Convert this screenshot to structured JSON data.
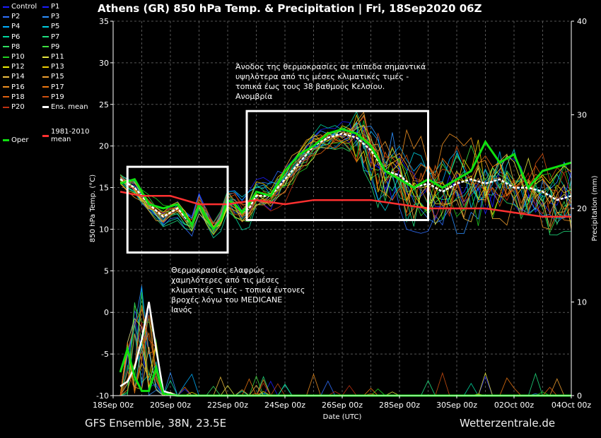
{
  "title": "Athens  (GR)  850 hPa Temp. & Precipitation | Fri, 18Sep2020 06Z",
  "footer": {
    "left": "GFS Ensemble, 38N, 23.5E",
    "right": "Wetterzentrale.de"
  },
  "annotations": {
    "upper": "Άνοδος της θερμοκρασίες σε επίπεδα σημαντικά\nυψηλότερα από τις μέσες κλιματικές τιμές -\nτοπικά έως τους 38 βαθμούς Κελσίου.\nΑνομβρία",
    "lower": "Θερμοκρασίες ελαφρώς\nχαμηλότερες από τις μέσες\nκλιματικές τιμές - τοπικά έντονες\nβροχές λόγω του MEDICANE\nΙανός"
  },
  "legend": [
    {
      "label": "Control",
      "color": "#1c1cff"
    },
    {
      "label": "P1",
      "color": "#1c1cff"
    },
    {
      "label": "P2",
      "color": "#3070ff"
    },
    {
      "label": "P3",
      "color": "#2e90ff"
    },
    {
      "label": "P4",
      "color": "#00b0ff"
    },
    {
      "label": "P5",
      "color": "#00d0e0"
    },
    {
      "label": "P6",
      "color": "#00d8a0"
    },
    {
      "label": "P7",
      "color": "#20e080"
    },
    {
      "label": "P8",
      "color": "#30e060"
    },
    {
      "label": "P9",
      "color": "#40e040"
    },
    {
      "label": "P10",
      "color": "#20d020"
    },
    {
      "label": "P11",
      "color": "#e8e840"
    },
    {
      "label": "P12",
      "color": "#f0f000"
    },
    {
      "label": "P13",
      "color": "#f0d000"
    },
    {
      "label": "P14",
      "color": "#f0c040"
    },
    {
      "label": "P15",
      "color": "#f0a030"
    },
    {
      "label": "P16",
      "color": "#f09020"
    },
    {
      "label": "P17",
      "color": "#f07810"
    },
    {
      "label": "P18",
      "color": "#e06010"
    },
    {
      "label": "P19",
      "color": "#d05010"
    },
    {
      "label": "P20",
      "color": "#c03010"
    },
    {
      "label": "Ens. mean",
      "color": "#ffffff"
    },
    {
      "label": "Oper",
      "color": "#10e010"
    },
    {
      "label": "1981-2010\nmean",
      "color": "#ff3030"
    }
  ],
  "chart_data": {
    "type": "line",
    "title": "Athens  (GR)  850 hPa Temp. & Precipitation | Fri, 18Sep2020 06Z",
    "xlabel": "Date (UTC)",
    "ylabel": "850 hPa Temp. (°C)",
    "y2label": "Precipitation (mm)",
    "xlim": [
      0,
      384
    ],
    "ylim": [
      -10,
      35
    ],
    "y2lim": [
      0,
      40
    ],
    "x_ticks": [
      {
        "h": 0,
        "label": "18Sep 00z"
      },
      {
        "h": 48,
        "label": "20Sep 00z"
      },
      {
        "h": 96,
        "label": "22Sep 00z"
      },
      {
        "h": 144,
        "label": "24Sep 00z"
      },
      {
        "h": 192,
        "label": "26Sep 00z"
      },
      {
        "h": 240,
        "label": "28Sep 00z"
      },
      {
        "h": 288,
        "label": "30Sep 00z"
      },
      {
        "h": 336,
        "label": "02Oct 00z"
      },
      {
        "h": 384,
        "label": "04Oct 00z"
      }
    ],
    "y_ticks": [
      -10,
      -5,
      0,
      5,
      10,
      15,
      20,
      25,
      30,
      35
    ],
    "y2_ticks": [
      0,
      10,
      20,
      30,
      40
    ],
    "grid": true,
    "series": [
      {
        "name": "Ens. mean",
        "color": "#ffffff",
        "width": 2.5,
        "dash": "4,2",
        "points": [
          [
            6,
            16
          ],
          [
            18,
            15
          ],
          [
            30,
            13
          ],
          [
            42,
            11.5
          ],
          [
            54,
            12.5
          ],
          [
            66,
            10.5
          ],
          [
            72,
            13
          ],
          [
            84,
            10
          ],
          [
            90,
            11
          ],
          [
            96,
            13.5
          ],
          [
            102,
            13
          ],
          [
            108,
            12
          ],
          [
            114,
            12.5
          ],
          [
            120,
            14
          ],
          [
            132,
            14
          ],
          [
            144,
            16
          ],
          [
            156,
            18
          ],
          [
            168,
            20
          ],
          [
            180,
            21
          ],
          [
            192,
            21.5
          ],
          [
            204,
            21
          ],
          [
            216,
            19.5
          ],
          [
            228,
            17
          ],
          [
            240,
            16.5
          ],
          [
            252,
            15
          ],
          [
            264,
            15.5
          ],
          [
            276,
            14.5
          ],
          [
            288,
            15.5
          ],
          [
            300,
            16
          ],
          [
            312,
            15.5
          ],
          [
            324,
            16
          ],
          [
            336,
            15
          ],
          [
            348,
            15
          ],
          [
            360,
            14.5
          ],
          [
            372,
            13.5
          ],
          [
            384,
            14
          ]
        ]
      },
      {
        "name": "Oper",
        "color": "#10e010",
        "width": 3,
        "points": [
          [
            6,
            15.5
          ],
          [
            18,
            16
          ],
          [
            30,
            13
          ],
          [
            42,
            12.5
          ],
          [
            54,
            13
          ],
          [
            66,
            10.5
          ],
          [
            72,
            13
          ],
          [
            84,
            10
          ],
          [
            90,
            11
          ],
          [
            96,
            13.5
          ],
          [
            102,
            13
          ],
          [
            108,
            12
          ],
          [
            114,
            13
          ],
          [
            120,
            14.5
          ],
          [
            132,
            14
          ],
          [
            144,
            17
          ],
          [
            156,
            19
          ],
          [
            168,
            20
          ],
          [
            180,
            21.5
          ],
          [
            192,
            22
          ],
          [
            204,
            21.5
          ],
          [
            216,
            20
          ],
          [
            228,
            17
          ],
          [
            240,
            16
          ],
          [
            252,
            15
          ],
          [
            264,
            16
          ],
          [
            276,
            15
          ],
          [
            288,
            16
          ],
          [
            300,
            17
          ],
          [
            312,
            20.5
          ],
          [
            324,
            18
          ],
          [
            336,
            19
          ],
          [
            348,
            15
          ],
          [
            360,
            17
          ],
          [
            372,
            17.5
          ],
          [
            384,
            18
          ]
        ]
      },
      {
        "name": "1981-2010\nmean",
        "color": "#ff3030",
        "width": 2.5,
        "points": [
          [
            6,
            14.5
          ],
          [
            24,
            14
          ],
          [
            48,
            14
          ],
          [
            72,
            13
          ],
          [
            96,
            13
          ],
          [
            120,
            13.5
          ],
          [
            144,
            13
          ],
          [
            168,
            13.5
          ],
          [
            192,
            13.5
          ],
          [
            216,
            13.5
          ],
          [
            240,
            13
          ],
          [
            264,
            12.5
          ],
          [
            288,
            12.5
          ],
          [
            312,
            12.5
          ],
          [
            336,
            12
          ],
          [
            360,
            11.5
          ],
          [
            384,
            11.5
          ]
        ]
      }
    ],
    "precipitation_series": [
      {
        "name": "Ens. mean",
        "color": "#ffffff",
        "width": 2.5,
        "points": [
          [
            6,
            1
          ],
          [
            12,
            1.5
          ],
          [
            18,
            3
          ],
          [
            24,
            6
          ],
          [
            30,
            10
          ],
          [
            36,
            5
          ],
          [
            42,
            0.5
          ],
          [
            54,
            0
          ],
          [
            120,
            0
          ],
          [
            240,
            0
          ],
          [
            384,
            0
          ]
        ]
      },
      {
        "name": "Oper",
        "color": "#10e010",
        "width": 3,
        "points": [
          [
            6,
            2.5
          ],
          [
            12,
            5
          ],
          [
            18,
            2
          ],
          [
            24,
            0.5
          ],
          [
            30,
            0.5
          ],
          [
            36,
            3
          ],
          [
            42,
            0.2
          ],
          [
            54,
            0
          ],
          [
            384,
            0
          ]
        ]
      }
    ]
  },
  "boxes": [
    {
      "x0": 12,
      "x1": 96,
      "y0": 17.5,
      "y1": 7.2
    },
    {
      "x0": 112,
      "x1": 264,
      "y0": 24.2,
      "y1": 11.1
    }
  ]
}
